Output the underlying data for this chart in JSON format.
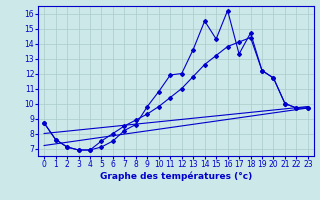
{
  "title": "Graphe des températures (°c)",
  "background_color": "#cce8e8",
  "grid_color": "#aacccc",
  "line_color": "#0000cc",
  "xlim": [
    -0.5,
    23.5
  ],
  "ylim": [
    6.5,
    16.5
  ],
  "xticks": [
    0,
    1,
    2,
    3,
    4,
    5,
    6,
    7,
    8,
    9,
    10,
    11,
    12,
    13,
    14,
    15,
    16,
    17,
    18,
    19,
    20,
    21,
    22,
    23
  ],
  "yticks": [
    7,
    8,
    9,
    10,
    11,
    12,
    13,
    14,
    15,
    16
  ],
  "series1_x": [
    0,
    1,
    2,
    3,
    4,
    5,
    6,
    7,
    8,
    9,
    10,
    11,
    12,
    13,
    14,
    15,
    16,
    17,
    18,
    19,
    20,
    21,
    22,
    23
  ],
  "series1_y": [
    8.7,
    7.6,
    7.1,
    6.9,
    6.9,
    7.1,
    7.5,
    8.2,
    8.6,
    9.8,
    10.8,
    11.9,
    12.0,
    13.6,
    15.5,
    14.3,
    16.2,
    13.3,
    14.7,
    12.2,
    11.7,
    10.0,
    9.7,
    9.7
  ],
  "series2_x": [
    0,
    1,
    2,
    3,
    4,
    5,
    6,
    7,
    8,
    9,
    10,
    11,
    12,
    13,
    14,
    15,
    16,
    17,
    18,
    19,
    20,
    21,
    22,
    23
  ],
  "series2_y": [
    8.7,
    7.6,
    7.1,
    6.9,
    6.9,
    7.5,
    8.0,
    8.5,
    8.9,
    9.3,
    9.8,
    10.4,
    11.0,
    11.8,
    12.6,
    13.2,
    13.8,
    14.1,
    14.4,
    12.2,
    11.7,
    10.0,
    9.7,
    9.7
  ],
  "series3_x": [
    0,
    23
  ],
  "series3_y": [
    7.2,
    9.7
  ],
  "series4_x": [
    0,
    23
  ],
  "series4_y": [
    8.0,
    9.8
  ]
}
